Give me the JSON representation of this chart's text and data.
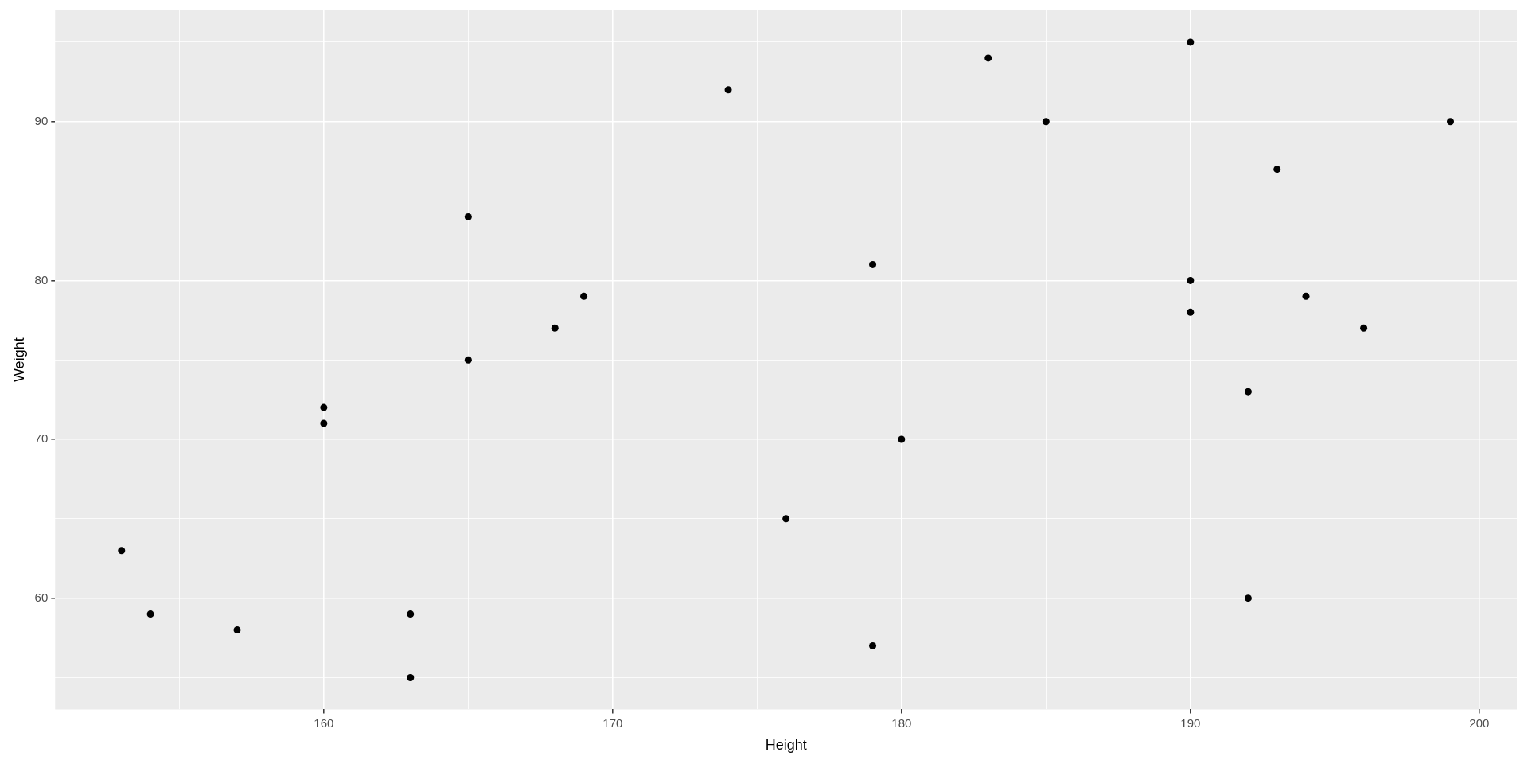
{
  "chart_data": {
    "type": "scatter",
    "xlabel": "Height",
    "ylabel": "Weight",
    "x": [
      153,
      154,
      157,
      160,
      160,
      163,
      163,
      165,
      165,
      168,
      169,
      174,
      176,
      179,
      179,
      180,
      183,
      185,
      190,
      190,
      190,
      192,
      192,
      193,
      194,
      196,
      199
    ],
    "series": [
      {
        "color": "#000000",
        "values": [
          63,
          59,
          58,
          72,
          71,
          59,
          55,
          84,
          75,
          77,
          79,
          92,
          65,
          81,
          57,
          70,
          94,
          90,
          95,
          80,
          78,
          73,
          60,
          87,
          79,
          77,
          90
        ]
      }
    ],
    "xlim": [
      150.7,
      201.3
    ],
    "xticks": [
      {
        "value": 155,
        "label": null
      },
      160,
      {
        "value": 165,
        "label": null
      },
      170,
      {
        "value": 175,
        "label": null
      },
      180,
      {
        "value": 185,
        "label": null
      },
      190,
      {
        "value": 195,
        "label": null
      },
      200
    ],
    "ylim": [
      53,
      97
    ],
    "yticks": [
      {
        "value": 55,
        "label": null
      },
      60,
      {
        "value": 65,
        "label": null
      },
      70,
      {
        "value": 75,
        "label": null
      },
      80,
      {
        "value": 85,
        "label": null
      },
      90,
      {
        "value": 95,
        "label": null
      }
    ],
    "grid": true,
    "legend": false,
    "marker": "circle"
  }
}
